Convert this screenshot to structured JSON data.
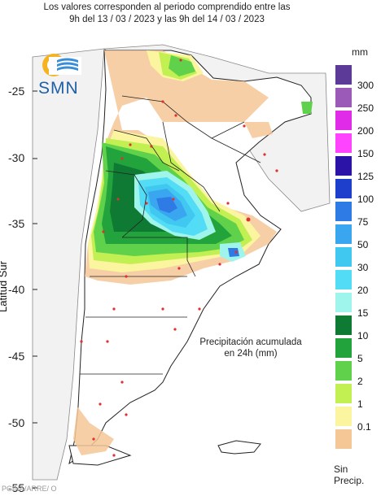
{
  "title": {
    "line1": "Los valores corresponden al periodo comprendido entre las",
    "line2": "9h del 13 / 03 / 2023  y las 9h del 14 / 03 / 2023"
  },
  "logo": {
    "text": "SMN"
  },
  "axes": {
    "ylabel": "Latitud Sur",
    "yticks": [
      "-25",
      "-30",
      "-35",
      "-40",
      "-45",
      "-50",
      "-55"
    ]
  },
  "annotation": {
    "line1": "Precipitación acumulada",
    "line2": "en 24h (mm)"
  },
  "scale": {
    "unit": "mm",
    "items": [
      {
        "label": "300",
        "color": "#5c3b98"
      },
      {
        "label": "250",
        "color": "#9c5ab8"
      },
      {
        "label": "200",
        "color": "#e02ce8"
      },
      {
        "label": "150",
        "color": "#ff44ff"
      },
      {
        "label": "125",
        "color": "#2c13a8"
      },
      {
        "label": "100",
        "color": "#1d3fcc"
      },
      {
        "label": "75",
        "color": "#2f7be5"
      },
      {
        "label": "50",
        "color": "#3aa6f0"
      },
      {
        "label": "30",
        "color": "#40c8f0"
      },
      {
        "label": "20",
        "color": "#52dcf5"
      },
      {
        "label": "15",
        "color": "#9ff5ec"
      },
      {
        "label": "10",
        "color": "#0e7a33"
      },
      {
        "label": "5",
        "color": "#22a33c"
      },
      {
        "label": "2",
        "color": "#5fd14a"
      },
      {
        "label": "1",
        "color": "#c2ef52"
      },
      {
        "label": "0.1",
        "color": "#fbf5a0"
      },
      {
        "label": "",
        "color": "#f6c796"
      }
    ],
    "no_precip": "Sin Precip."
  },
  "footer": "PGINA/ARRE/ O"
}
